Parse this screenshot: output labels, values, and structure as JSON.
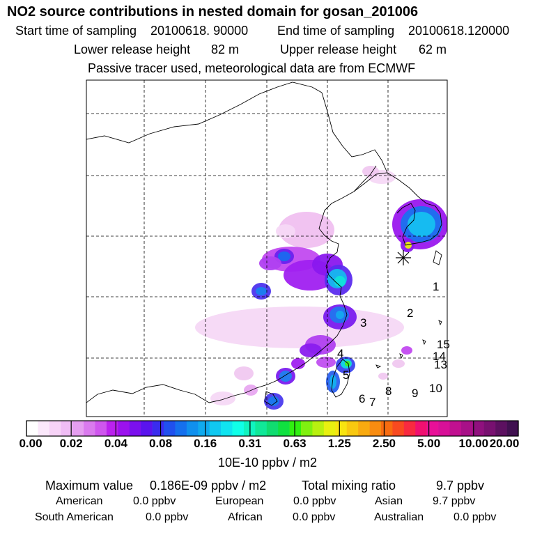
{
  "title": "NO2 source contributions in nested domain for gosan_201006",
  "sampling": {
    "start_label": "Start time of sampling",
    "start_value": "20100618. 90000",
    "end_label": "End time of sampling",
    "end_value": "20100618.120000"
  },
  "release": {
    "lower_label": "Lower release height",
    "lower_value": "82 m",
    "upper_label": "Upper release height",
    "upper_value": "62 m"
  },
  "tracer_note": "Passive tracer used, meteorological data are from ECMWF",
  "colorbar": {
    "ticks": [
      "0.00",
      "0.02",
      "0.04",
      "0.08",
      "0.16",
      "0.31",
      "0.63",
      "1.25",
      "2.50",
      "5.00",
      "10.00",
      "20.00"
    ],
    "colors": [
      "#ffffff",
      "#fbe8fb",
      "#f7d3f7",
      "#f0bdf5",
      "#e59ef0",
      "#da7aee",
      "#cf56ee",
      "#bb22ee",
      "#9b12ee",
      "#7b10ee",
      "#5a14ee",
      "#3a2cee",
      "#2050ee",
      "#1570ee",
      "#1090ee",
      "#10aaee",
      "#10c8f0",
      "#10e4f0",
      "#10ffe8",
      "#10f4c0",
      "#10e898",
      "#10dc70",
      "#10e040",
      "#30f010",
      "#80f010",
      "#b8f010",
      "#e8f010",
      "#f8e410",
      "#f8c810",
      "#f8aa10",
      "#f88c10",
      "#f86c10",
      "#f84a20",
      "#f82a40",
      "#f01070",
      "#e81098",
      "#d81098",
      "#c01090",
      "#a81088",
      "#90107e",
      "#781070",
      "#5c1060",
      "#401050"
    ],
    "units": "10E-10 ppbv / m2"
  },
  "stats": {
    "max_label": "Maximum value",
    "max_value": "0.186E-09 ppbv / m2",
    "total_label": "Total mixing ratio",
    "total_value": "9.7 ppbv",
    "american_label": "American",
    "american_value": "0.0 ppbv",
    "european_label": "European",
    "european_value": "0.0 ppbv",
    "asian_label": "Asian",
    "asian_value": "9.7 ppbv",
    "south_american_label": "South American",
    "south_american_value": "0.0 ppbv",
    "african_label": "African",
    "african_value": "0.0 ppbv",
    "australian_label": "Australian",
    "australian_value": "0.0 ppbv"
  },
  "chart_data": {
    "type": "heatmap",
    "title": "NO2 source contributions in nested domain for gosan_201006",
    "units": "10E-10 ppbv / m2",
    "color_levels": [
      0.0,
      0.02,
      0.04,
      0.08,
      0.16,
      0.31,
      0.63,
      1.25,
      2.5,
      5.0,
      10.0,
      20.0
    ],
    "receptor": "gosan",
    "region_labels": [
      "1",
      "2",
      "3",
      "4",
      "5",
      "6",
      "7",
      "8",
      "9",
      "10",
      "13",
      "14",
      "15"
    ],
    "grid": true
  }
}
